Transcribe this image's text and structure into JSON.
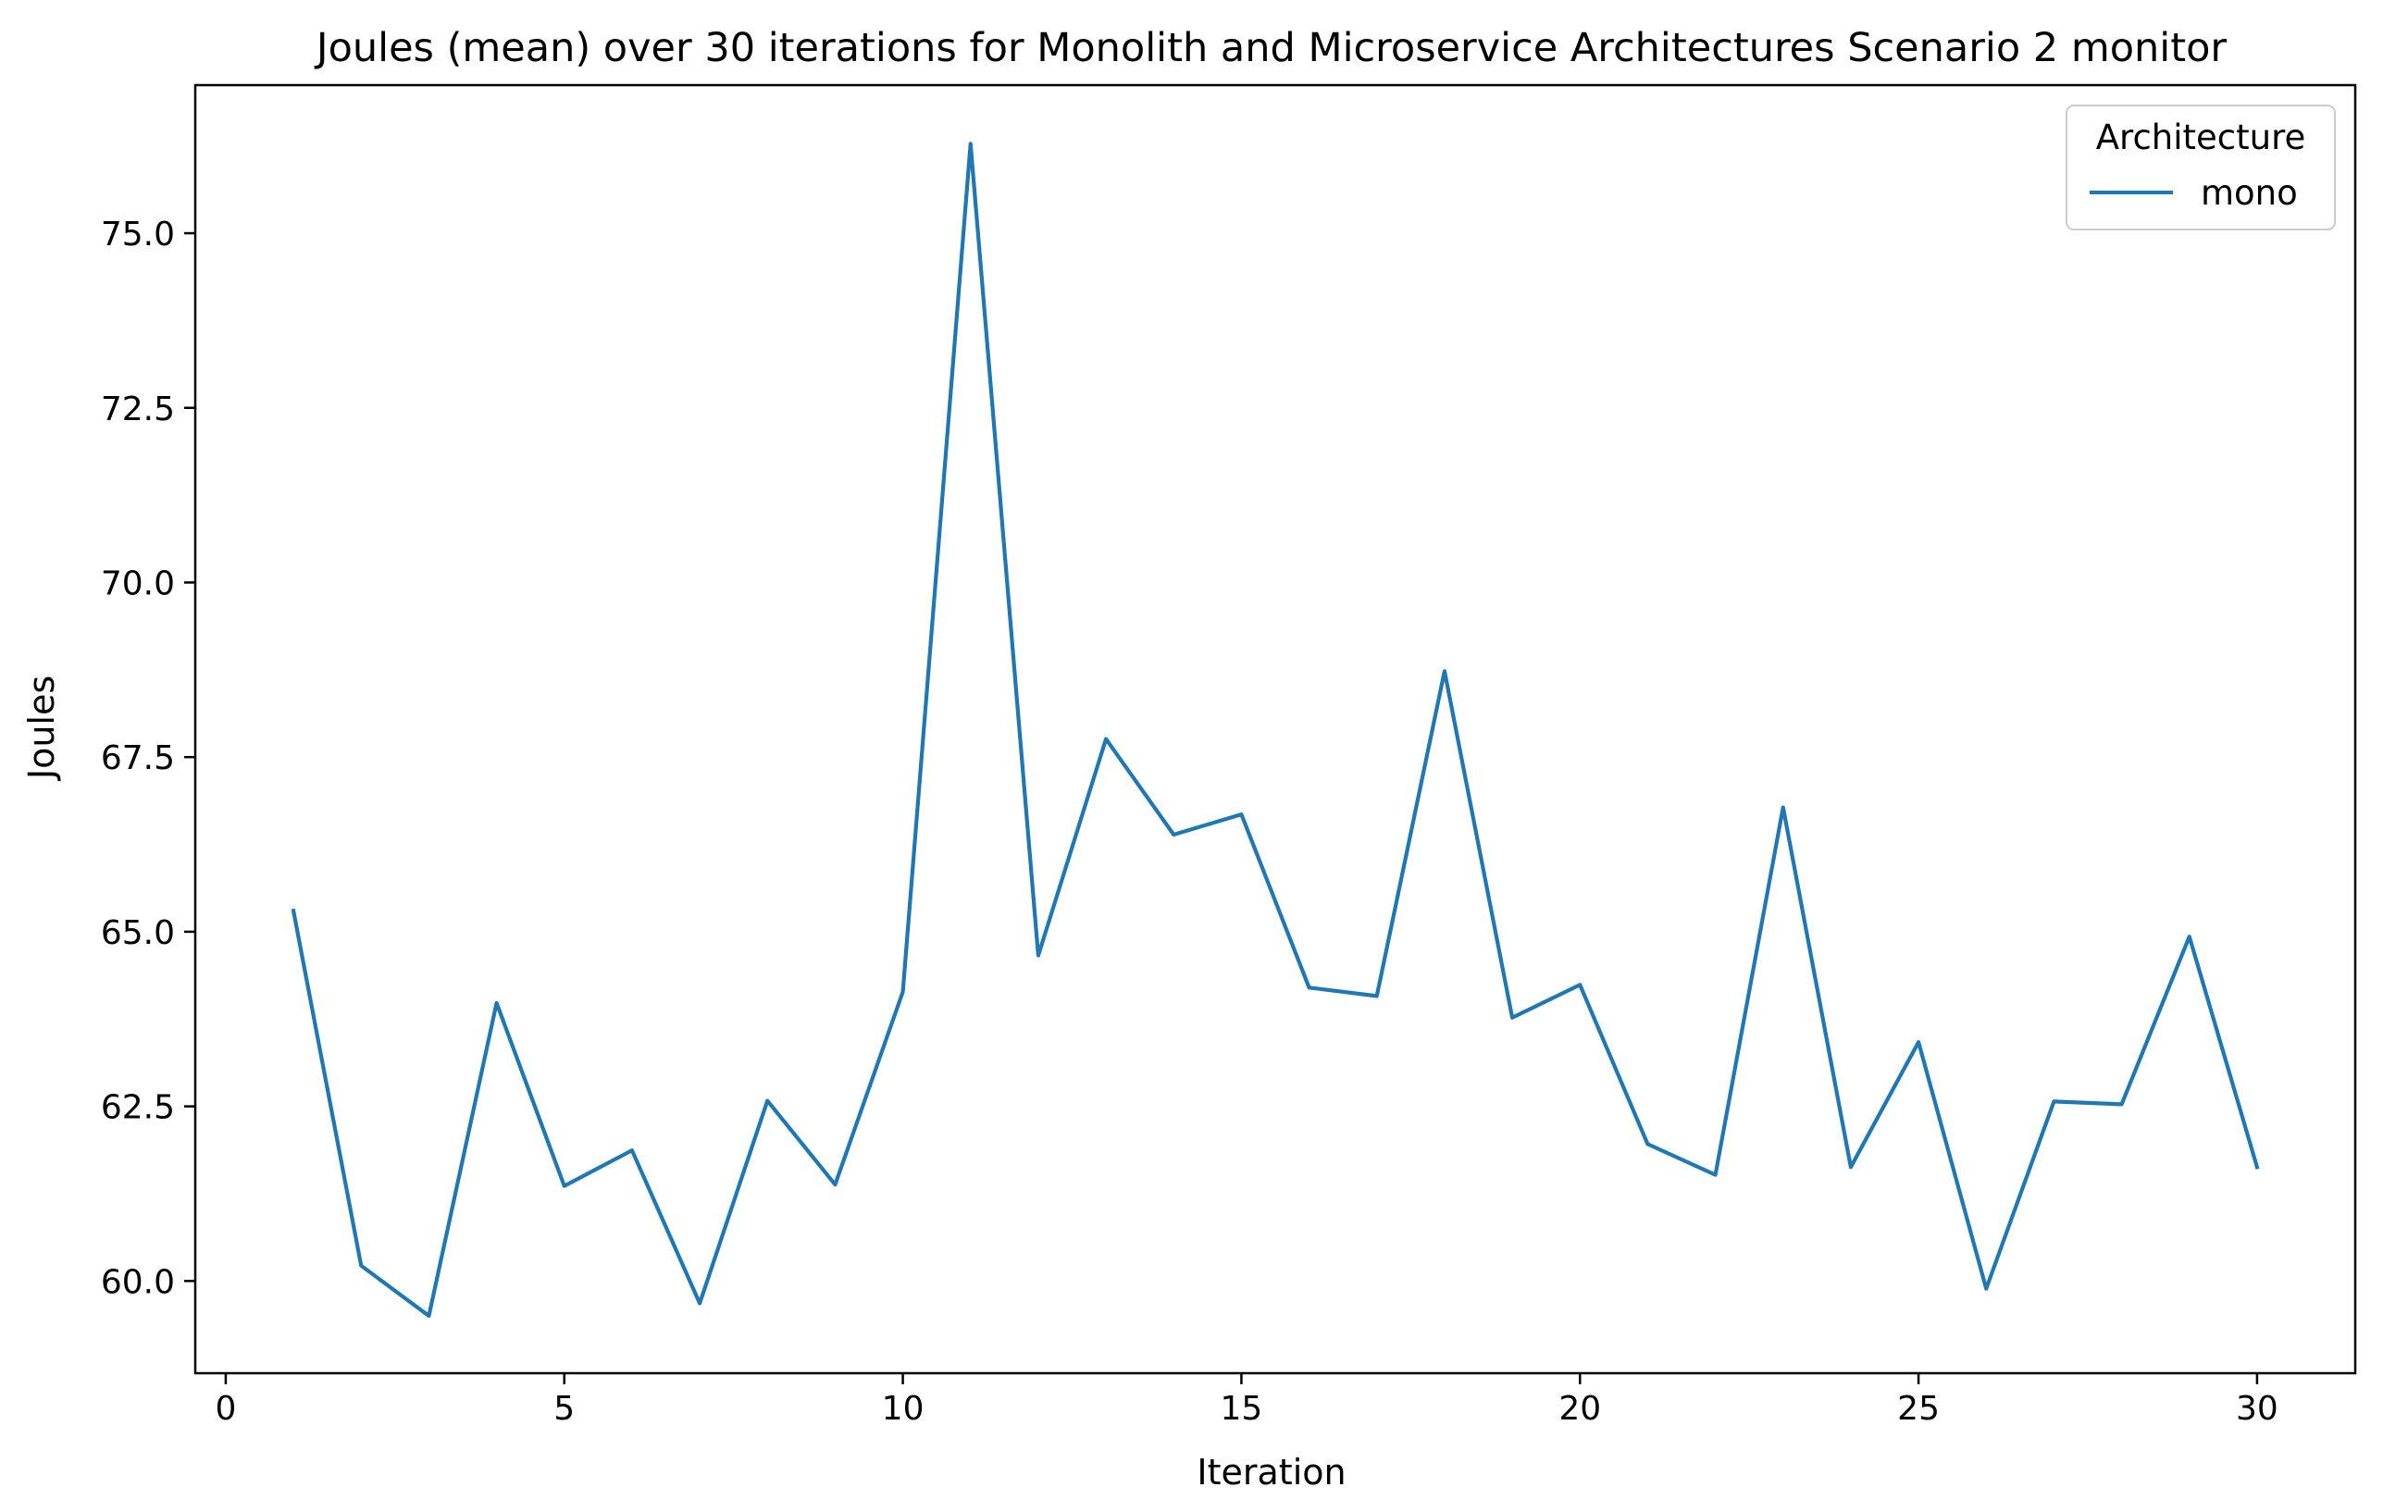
{
  "chart_data": {
    "type": "line",
    "title": "Joules (mean) over 30 iterations for Monolith and Microservice Architectures Scenario 2 monitor",
    "xlabel": "Iteration",
    "ylabel": "Joules",
    "xlim": [
      -0.45,
      31.45
    ],
    "ylim": [
      58.68,
      77.12
    ],
    "x_ticks": [
      0,
      5,
      10,
      15,
      20,
      25,
      30
    ],
    "x_tick_labels": [
      "0",
      "5",
      "10",
      "15",
      "20",
      "25",
      "30"
    ],
    "y_ticks": [
      60.0,
      62.5,
      65.0,
      67.5,
      70.0,
      72.5,
      75.0
    ],
    "y_tick_labels": [
      "60.0",
      "62.5",
      "65.0",
      "67.5",
      "70.0",
      "72.5",
      "75.0"
    ],
    "grid": false,
    "legend": {
      "title": "Architecture",
      "placement": "upper right"
    },
    "series": [
      {
        "name": "mono",
        "color": "#1f77b4",
        "x": [
          1,
          2,
          3,
          4,
          5,
          6,
          7,
          8,
          9,
          10,
          11,
          12,
          13,
          14,
          15,
          16,
          17,
          18,
          19,
          20,
          21,
          22,
          23,
          24,
          25,
          26,
          27,
          28,
          29,
          30
        ],
        "values": [
          65.3,
          60.22,
          59.5,
          63.98,
          61.36,
          61.87,
          59.68,
          62.58,
          61.38,
          64.14,
          76.28,
          64.66,
          67.76,
          66.39,
          66.68,
          64.2,
          64.08,
          68.73,
          63.77,
          64.24,
          61.96,
          61.52,
          66.78,
          61.63,
          63.42,
          59.89,
          62.57,
          62.53,
          64.93,
          61.63
        ]
      }
    ]
  }
}
